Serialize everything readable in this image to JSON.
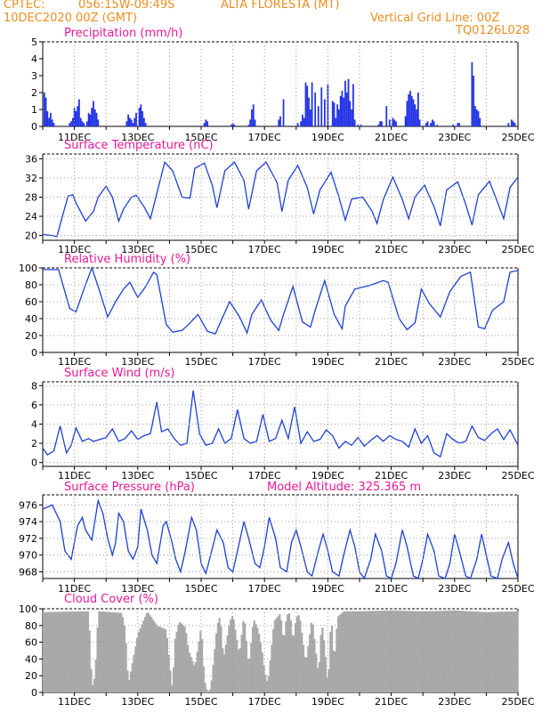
{
  "header": {
    "source": "CPTEC:",
    "coords": "056:15W-09:49S",
    "station": "ALTA FLORESTA (MT)",
    "date": "10DEC2020 00Z (GMT)",
    "vgrid": "Vertical Grid Line: 00Z",
    "code": "TQ0126L028"
  },
  "colors": {
    "header": "#ee8c1e",
    "title": "#e8189a",
    "line": "#1c3fd6",
    "bars": "#2233e6",
    "cloud": "#a9a9a9",
    "grid": "#9a9a9a"
  },
  "x_ticks": [
    "11DEC",
    "13DEC",
    "15DEC",
    "17DEC",
    "19DEC",
    "21DEC",
    "23DEC",
    "25DEC"
  ],
  "chart_data": [
    {
      "id": "precip",
      "type": "bar",
      "title": "Precipitation (mm/h)",
      "xlim_days": [
        10,
        25
      ],
      "ylim": [
        0,
        5
      ],
      "yticks": [
        0,
        1,
        2,
        3,
        4,
        5
      ],
      "x": [
        10.05,
        10.1,
        10.15,
        10.2,
        10.25,
        10.3,
        10.35,
        10.85,
        10.9,
        10.95,
        11.0,
        11.05,
        11.1,
        11.15,
        11.2,
        11.25,
        11.3,
        11.4,
        11.45,
        11.5,
        11.55,
        11.6,
        11.65,
        11.7,
        11.75,
        12.65,
        12.7,
        12.75,
        12.8,
        12.85,
        12.9,
        12.95,
        13.05,
        13.1,
        13.15,
        13.2,
        13.25,
        15.1,
        15.15,
        15.2,
        15.95,
        16.0,
        16.05,
        16.5,
        16.55,
        16.6,
        16.65,
        16.7,
        17.45,
        17.5,
        17.6,
        18.05,
        18.15,
        18.2,
        18.25,
        18.3,
        18.35,
        18.4,
        18.45,
        18.5,
        18.6,
        18.7,
        18.8,
        18.9,
        19.0,
        19.15,
        19.2,
        19.25,
        19.3,
        19.35,
        19.4,
        19.45,
        19.5,
        19.55,
        19.6,
        19.65,
        19.7,
        19.75,
        19.8,
        19.85,
        19.95,
        20.05,
        20.6,
        20.65,
        20.7,
        20.85,
        20.95,
        21.05,
        21.1,
        21.15,
        21.45,
        21.5,
        21.55,
        21.6,
        21.65,
        21.7,
        21.75,
        21.8,
        21.85,
        21.9,
        22.1,
        22.15,
        22.25,
        22.3,
        22.35,
        22.45,
        22.95,
        23.1,
        23.15,
        23.55,
        23.6,
        23.65,
        23.7,
        23.75,
        23.8,
        24.7,
        24.8,
        24.85,
        24.9
      ],
      "values": [
        2.0,
        1.7,
        0.9,
        0.5,
        0.8,
        0.4,
        0.2,
        0.2,
        0.3,
        0.5,
        1.1,
        0.9,
        1.2,
        1.6,
        0.5,
        0.3,
        0.2,
        0.3,
        0.8,
        0.7,
        1.1,
        1.5,
        1.0,
        0.8,
        0.4,
        0.3,
        0.7,
        0.5,
        0.4,
        0.2,
        0.5,
        0.8,
        1.1,
        1.3,
        0.9,
        0.5,
        0.2,
        0.2,
        0.4,
        0.3,
        0.1,
        0.2,
        0.1,
        0.1,
        0.4,
        1.0,
        1.3,
        0.4,
        0.4,
        0.6,
        1.6,
        0.2,
        0.3,
        0.7,
        0.5,
        2.6,
        2.4,
        1.7,
        1.0,
        2.6,
        2.0,
        1.2,
        2.3,
        1.6,
        2.5,
        1.5,
        1.4,
        0.5,
        1.3,
        1.0,
        1.8,
        2.1,
        1.7,
        2.7,
        2.0,
        2.8,
        1.5,
        1.0,
        2.5,
        0.4,
        0.1,
        0.1,
        0.1,
        0.3,
        0.3,
        1.2,
        0.4,
        0.5,
        0.4,
        0.3,
        0.6,
        1.5,
        1.9,
        2.1,
        1.8,
        1.6,
        1.3,
        1.0,
        2.0,
        0.4,
        0.2,
        0.3,
        0.2,
        0.4,
        0.3,
        0.1,
        0.1,
        0.2,
        0.2,
        3.8,
        3.0,
        1.2,
        1.0,
        0.9,
        0.5,
        0.2,
        0.4,
        0.3,
        0.2
      ]
    },
    {
      "id": "temp",
      "type": "line",
      "title": "Surface Temperature (nC)",
      "xlim_days": [
        10,
        25
      ],
      "ylim": [
        19,
        37
      ],
      "yticks": [
        20,
        24,
        28,
        32,
        36
      ],
      "x": [
        10.0,
        10.3,
        10.45,
        10.6,
        10.8,
        10.95,
        11.05,
        11.35,
        11.6,
        11.75,
        12.0,
        12.2,
        12.4,
        12.55,
        12.8,
        12.95,
        13.2,
        13.4,
        13.65,
        13.85,
        14.1,
        14.4,
        14.65,
        14.8,
        15.1,
        15.35,
        15.5,
        15.75,
        16.05,
        16.35,
        16.5,
        16.75,
        17.05,
        17.4,
        17.55,
        17.75,
        18.05,
        18.35,
        18.55,
        18.75,
        19.1,
        19.35,
        19.55,
        19.75,
        20.1,
        20.4,
        20.55,
        20.75,
        21.05,
        21.35,
        21.55,
        21.75,
        22.05,
        22.35,
        22.55,
        22.75,
        23.1,
        23.35,
        23.55,
        23.75,
        24.1,
        24.35,
        24.55,
        24.75,
        25.0
      ],
      "values": [
        20.2,
        20.0,
        19.8,
        23.5,
        28.2,
        28.5,
        26.8,
        23.0,
        25.0,
        28.0,
        30.3,
        28.0,
        23.0,
        25.5,
        28.0,
        28.4,
        26.0,
        23.5,
        30.0,
        35.3,
        33.5,
        28.0,
        27.8,
        34.0,
        35.1,
        30.5,
        25.8,
        33.5,
        35.3,
        31.5,
        25.5,
        33.5,
        35.3,
        31.0,
        25.0,
        31.5,
        34.6,
        30.0,
        24.5,
        29.5,
        33.2,
        28.0,
        23.2,
        27.6,
        28.0,
        25.0,
        22.5,
        27.5,
        32.2,
        27.5,
        23.5,
        28.0,
        30.5,
        26.0,
        22.0,
        29.5,
        31.2,
        26.5,
        22.2,
        28.5,
        31.3,
        27.0,
        23.5,
        30.0,
        32.2
      ]
    },
    {
      "id": "rh",
      "type": "line",
      "title": "Relative Humidity (%)",
      "xlim_days": [
        10,
        25
      ],
      "ylim": [
        0,
        100
      ],
      "yticks": [
        0,
        20,
        40,
        60,
        80,
        100
      ],
      "x": [
        10.0,
        10.5,
        10.85,
        11.05,
        11.3,
        11.55,
        11.75,
        12.05,
        12.3,
        12.55,
        12.75,
        13.0,
        13.25,
        13.5,
        13.6,
        13.9,
        14.1,
        14.4,
        14.65,
        14.9,
        15.2,
        15.45,
        15.6,
        15.9,
        16.2,
        16.45,
        16.6,
        16.9,
        17.2,
        17.45,
        17.6,
        17.9,
        18.2,
        18.45,
        18.6,
        18.9,
        19.2,
        19.45,
        19.55,
        19.85,
        20.3,
        20.75,
        20.9,
        21.25,
        21.5,
        21.75,
        21.95,
        22.2,
        22.55,
        22.75,
        22.85,
        23.2,
        23.5,
        23.75,
        23.95,
        24.2,
        24.55,
        24.75,
        25.0
      ],
      "values": [
        98.0,
        98.0,
        52.0,
        48.0,
        75.0,
        100.0,
        78.0,
        42.0,
        60.0,
        75.0,
        83.0,
        65.0,
        78.0,
        95.0,
        92.0,
        33.0,
        24.0,
        26.0,
        35.0,
        45.0,
        25.0,
        22.0,
        35.0,
        60.0,
        43.0,
        23.0,
        45.0,
        62.0,
        38.0,
        26.0,
        45.0,
        78.0,
        36.0,
        30.0,
        50.0,
        85.0,
        45.0,
        28.0,
        55.0,
        75.0,
        79.0,
        85.0,
        83.0,
        40.0,
        27.0,
        35.0,
        75.0,
        58.0,
        42.0,
        62.0,
        72.0,
        90.0,
        95.0,
        30.0,
        28.0,
        50.0,
        60.0,
        95.0,
        97.0
      ]
    },
    {
      "id": "wind",
      "type": "line",
      "title": "Surface Wind (m/s)",
      "xlim_days": [
        10,
        25
      ],
      "ylim": [
        -0.4,
        8.4
      ],
      "yticks": [
        0,
        2,
        4,
        6,
        8
      ],
      "x": [
        10.0,
        10.15,
        10.35,
        10.55,
        10.75,
        10.9,
        11.05,
        11.25,
        11.45,
        11.6,
        11.8,
        12.0,
        12.2,
        12.4,
        12.6,
        12.8,
        13.0,
        13.2,
        13.4,
        13.6,
        13.75,
        13.95,
        14.15,
        14.35,
        14.55,
        14.75,
        14.95,
        15.15,
        15.35,
        15.55,
        15.75,
        15.95,
        16.15,
        16.35,
        16.55,
        16.75,
        16.95,
        17.15,
        17.35,
        17.55,
        17.75,
        17.95,
        18.15,
        18.35,
        18.55,
        18.75,
        18.95,
        19.15,
        19.35,
        19.55,
        19.75,
        19.95,
        20.15,
        20.35,
        20.55,
        20.75,
        20.95,
        21.15,
        21.35,
        21.55,
        21.75,
        21.95,
        22.15,
        22.35,
        22.55,
        22.75,
        22.95,
        23.15,
        23.35,
        23.55,
        23.75,
        23.95,
        24.15,
        24.35,
        24.55,
        24.75,
        25.0
      ],
      "values": [
        1.5,
        0.8,
        1.2,
        3.8,
        1.0,
        1.8,
        3.6,
        2.2,
        2.5,
        2.2,
        2.4,
        2.6,
        3.5,
        2.2,
        2.5,
        3.3,
        2.4,
        2.8,
        3.0,
        6.3,
        3.2,
        3.5,
        2.5,
        1.8,
        2.0,
        7.5,
        3.0,
        1.8,
        2.0,
        3.5,
        2.0,
        2.5,
        5.5,
        2.5,
        2.0,
        2.2,
        5.0,
        2.2,
        2.5,
        4.4,
        2.5,
        5.8,
        2.0,
        3.2,
        2.2,
        2.4,
        3.4,
        2.8,
        1.5,
        2.2,
        1.8,
        2.6,
        1.7,
        2.3,
        2.8,
        2.2,
        2.8,
        2.4,
        2.2,
        1.6,
        3.5,
        2.0,
        2.8,
        1.0,
        0.6,
        3.0,
        2.4,
        2.0,
        2.2,
        3.8,
        2.6,
        2.3,
        3.0,
        3.5,
        2.4,
        3.4,
        1.8
      ]
    },
    {
      "id": "press",
      "type": "line",
      "title": "Surface Pressure (hPa)",
      "annotation": "Model Altitude: 325.365 m",
      "xlim_days": [
        10,
        25
      ],
      "ylim": [
        967.2,
        977.2
      ],
      "yticks": [
        968,
        970,
        972,
        974,
        976
      ],
      "x": [
        10.0,
        10.3,
        10.55,
        10.7,
        10.9,
        11.1,
        11.25,
        11.35,
        11.55,
        11.75,
        11.9,
        12.05,
        12.2,
        12.3,
        12.4,
        12.55,
        12.7,
        12.85,
        13.0,
        13.1,
        13.3,
        13.45,
        13.6,
        13.8,
        13.9,
        14.05,
        14.2,
        14.35,
        14.5,
        14.7,
        14.85,
        15.0,
        15.15,
        15.3,
        15.5,
        15.7,
        15.85,
        16.0,
        16.15,
        16.35,
        16.5,
        16.7,
        16.85,
        17.0,
        17.15,
        17.35,
        17.5,
        17.7,
        17.85,
        18.0,
        18.15,
        18.35,
        18.5,
        18.7,
        18.85,
        19.0,
        19.15,
        19.35,
        19.5,
        19.7,
        19.85,
        20.0,
        20.15,
        20.35,
        20.5,
        20.7,
        20.85,
        21.0,
        21.15,
        21.35,
        21.5,
        21.7,
        21.85,
        22.0,
        22.15,
        22.35,
        22.5,
        22.7,
        22.85,
        23.0,
        23.15,
        23.35,
        23.5,
        23.7,
        23.85,
        24.0,
        24.15,
        24.35,
        24.5,
        24.7,
        24.85,
        25.0
      ],
      "values": [
        975.5,
        976.0,
        974.0,
        970.5,
        969.5,
        973.5,
        974.5,
        973.0,
        971.8,
        976.5,
        975.0,
        972.0,
        970.0,
        971.5,
        975.0,
        974.0,
        970.5,
        969.5,
        971.0,
        975.5,
        973.0,
        970.0,
        969.0,
        973.5,
        974.0,
        972.0,
        969.5,
        968.0,
        970.5,
        974.5,
        973.0,
        969.0,
        967.8,
        970.0,
        973.0,
        971.5,
        968.5,
        968.0,
        970.5,
        974.0,
        972.0,
        969.0,
        968.5,
        971.0,
        974.5,
        972.0,
        968.5,
        968.0,
        971.5,
        973.0,
        971.0,
        968.0,
        967.5,
        970.5,
        972.5,
        970.5,
        968.0,
        967.5,
        970.0,
        973.0,
        971.0,
        968.0,
        967.0,
        969.5,
        972.5,
        970.5,
        967.5,
        966.5,
        969.0,
        973.0,
        971.0,
        967.5,
        967.0,
        969.5,
        972.5,
        970.5,
        967.5,
        966.5,
        969.0,
        972.5,
        970.5,
        967.5,
        967.0,
        969.5,
        972.5,
        970.0,
        967.5,
        967.0,
        969.5,
        971.5,
        969.0,
        967.0
      ]
    },
    {
      "id": "cloud",
      "type": "area",
      "title": "Cloud Cover (%)",
      "xlim_days": [
        10,
        25
      ],
      "ylim": [
        0,
        100
      ],
      "yticks": [
        0,
        20,
        40,
        60,
        80,
        100
      ],
      "x": [
        10.0,
        11.45,
        11.55,
        11.65,
        11.75,
        12.5,
        12.6,
        12.7,
        13.0,
        13.3,
        13.6,
        13.9,
        14.0,
        14.1,
        14.15,
        14.3,
        14.5,
        14.6,
        14.8,
        15.0,
        15.1,
        15.2,
        15.3,
        15.5,
        15.6,
        15.7,
        15.9,
        16.0,
        16.2,
        16.35,
        16.5,
        16.65,
        16.8,
        16.9,
        17.0,
        17.1,
        17.3,
        17.5,
        17.6,
        17.7,
        17.8,
        17.9,
        18.0,
        18.1,
        18.3,
        18.5,
        18.7,
        18.8,
        18.9,
        19.0,
        19.1,
        19.2,
        19.3,
        19.5,
        20.0,
        21.0,
        22.0,
        23.0,
        24.0,
        25.0
      ],
      "values": [
        96.0,
        97.0,
        5.0,
        20.0,
        97.0,
        95.0,
        75.0,
        10.0,
        70.0,
        97.0,
        80.0,
        75.0,
        35.0,
        0.0,
        60.0,
        85.0,
        78.0,
        50.0,
        30.0,
        80.0,
        15.0,
        0.0,
        5.0,
        80.0,
        92.0,
        40.0,
        85.0,
        93.0,
        45.0,
        93.0,
        30.0,
        88.0,
        75.0,
        55.0,
        25.0,
        10.0,
        85.0,
        95.0,
        60.0,
        93.0,
        95.0,
        60.0,
        90.0,
        93.0,
        35.0,
        90.0,
        20.0,
        85.0,
        55.0,
        5.0,
        95.0,
        35.0,
        90.0,
        97.0,
        97.0,
        98.0,
        97.0,
        98.0,
        96.0,
        97.0
      ]
    }
  ]
}
